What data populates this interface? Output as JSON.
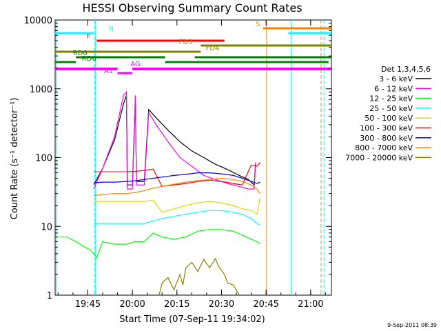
{
  "chart_data": {
    "type": "line",
    "title": "HESSI Observing Summary Count Rates",
    "xlabel": "Start Time (07-Sep-11 19:34:02)",
    "ylabel": "Count Rate (s⁻¹ detector⁻¹)",
    "yscale": "log",
    "xlim_minutes": [
      0,
      93
    ],
    "ylim": [
      1,
      10000
    ],
    "x_ticks": [
      {
        "label": "19:45",
        "min": 11
      },
      {
        "label": "20:00",
        "min": 26
      },
      {
        "label": "20:15",
        "min": 41
      },
      {
        "label": "20:30",
        "min": 56
      },
      {
        "label": "20:45",
        "min": 71
      },
      {
        "label": "21:00",
        "min": 86
      }
    ],
    "y_ticks": [
      {
        "label": "1",
        "value": 1
      },
      {
        "label": "10",
        "value": 10
      },
      {
        "label": "100",
        "value": 100
      },
      {
        "label": "1000",
        "value": 1000
      },
      {
        "label": "10000",
        "value": 10000
      }
    ],
    "legend_title": "Det 1,3,4,5,6",
    "legend_placement": "right",
    "series": [
      {
        "name": "3 - 6 keV",
        "color": "#000000",
        "points": [
          [
            13,
            40
          ],
          [
            16,
            70
          ],
          [
            20,
            180
          ],
          [
            23,
            600
          ],
          [
            24,
            800
          ],
          [
            24.3,
            40
          ],
          [
            26,
            40
          ],
          [
            27,
            700
          ],
          [
            27.4,
            45
          ],
          [
            30,
            45
          ],
          [
            31.5,
            500
          ],
          [
            34,
            380
          ],
          [
            38,
            250
          ],
          [
            42,
            170
          ],
          [
            46,
            125
          ],
          [
            50,
            100
          ],
          [
            54,
            80
          ],
          [
            58,
            67
          ],
          [
            62,
            55
          ],
          [
            65,
            48
          ],
          [
            67,
            40
          ],
          [
            67.5,
            85
          ]
        ]
      },
      {
        "name": "6 - 12 keV",
        "color": "#ff00ff",
        "points": [
          [
            13,
            35
          ],
          [
            16,
            70
          ],
          [
            20,
            200
          ],
          [
            23,
            800
          ],
          [
            24,
            900
          ],
          [
            24.3,
            35
          ],
          [
            26,
            35
          ],
          [
            27,
            800
          ],
          [
            27.4,
            40
          ],
          [
            30,
            40
          ],
          [
            31.5,
            450
          ],
          [
            34,
            300
          ],
          [
            38,
            170
          ],
          [
            42,
            100
          ],
          [
            46,
            75
          ],
          [
            50,
            55
          ],
          [
            54,
            48
          ],
          [
            58,
            42
          ],
          [
            62,
            38
          ],
          [
            65,
            35
          ],
          [
            67,
            35
          ],
          [
            67.5,
            85
          ]
        ]
      },
      {
        "name": "12 - 25 keV",
        "color": "#00ff00",
        "points": [
          [
            1,
            7
          ],
          [
            4,
            7
          ],
          [
            7,
            6
          ],
          [
            10,
            5
          ],
          [
            12,
            4.5
          ],
          [
            14,
            3.5
          ],
          [
            16,
            6
          ],
          [
            20,
            5.5
          ],
          [
            24,
            5.5
          ],
          [
            27,
            6
          ],
          [
            30,
            6
          ],
          [
            33,
            8
          ],
          [
            36,
            7
          ],
          [
            40,
            6.5
          ],
          [
            44,
            7
          ],
          [
            48,
            8.5
          ],
          [
            52,
            9
          ],
          [
            56,
            9
          ],
          [
            60,
            8.5
          ],
          [
            63,
            7.5
          ],
          [
            66,
            6.5
          ],
          [
            68,
            6
          ],
          [
            69,
            5.5
          ]
        ]
      },
      {
        "name": "25 - 50 keV",
        "color": "#00ffff",
        "points": [
          [
            13,
            11
          ],
          [
            16,
            11
          ],
          [
            20,
            11
          ],
          [
            24,
            11
          ],
          [
            27,
            11
          ],
          [
            30,
            11
          ],
          [
            33,
            12
          ],
          [
            36,
            13
          ],
          [
            40,
            14
          ],
          [
            44,
            15
          ],
          [
            48,
            16
          ],
          [
            52,
            17
          ],
          [
            56,
            17
          ],
          [
            60,
            16
          ],
          [
            63,
            15
          ],
          [
            66,
            13
          ],
          [
            68,
            11
          ],
          [
            69,
            10.5
          ]
        ]
      },
      {
        "name": "50 - 100 keV",
        "color": "#d8d800",
        "points": [
          [
            13,
            23
          ],
          [
            16,
            23
          ],
          [
            20,
            23
          ],
          [
            24,
            23
          ],
          [
            27,
            23
          ],
          [
            30,
            23
          ],
          [
            33,
            24
          ],
          [
            36,
            16
          ],
          [
            40,
            18
          ],
          [
            44,
            20
          ],
          [
            48,
            22
          ],
          [
            52,
            23
          ],
          [
            56,
            22
          ],
          [
            60,
            20
          ],
          [
            63,
            18
          ],
          [
            66,
            17
          ],
          [
            68,
            15
          ],
          [
            69,
            26
          ]
        ]
      },
      {
        "name": "100 - 300 keV",
        "color": "#ff0000",
        "points": [
          [
            13,
            62
          ],
          [
            16,
            62
          ],
          [
            20,
            62
          ],
          [
            24,
            62
          ],
          [
            27,
            63
          ],
          [
            30,
            65
          ],
          [
            33,
            68
          ],
          [
            36,
            38
          ],
          [
            40,
            40
          ],
          [
            44,
            42
          ],
          [
            48,
            45
          ],
          [
            52,
            47
          ],
          [
            56,
            45
          ],
          [
            60,
            42
          ],
          [
            63,
            40
          ],
          [
            66,
            78
          ],
          [
            68,
            75
          ],
          [
            69,
            85
          ]
        ]
      },
      {
        "name": "300 - 800 keV",
        "color": "#0000ff",
        "points": [
          [
            13,
            43
          ],
          [
            16,
            44
          ],
          [
            20,
            44
          ],
          [
            24,
            45
          ],
          [
            27,
            46
          ],
          [
            30,
            48
          ],
          [
            33,
            50
          ],
          [
            36,
            52
          ],
          [
            40,
            55
          ],
          [
            44,
            57
          ],
          [
            48,
            60
          ],
          [
            52,
            60
          ],
          [
            56,
            58
          ],
          [
            60,
            55
          ],
          [
            63,
            50
          ],
          [
            66,
            45
          ],
          [
            68,
            42
          ],
          [
            69,
            44
          ]
        ]
      },
      {
        "name": "800 - 7000 keV",
        "color": "#ff8000",
        "points": [
          [
            13,
            28
          ],
          [
            16,
            29
          ],
          [
            20,
            30
          ],
          [
            24,
            30
          ],
          [
            27,
            31
          ],
          [
            30,
            33
          ],
          [
            33,
            36
          ],
          [
            36,
            38
          ],
          [
            40,
            41
          ],
          [
            44,
            44
          ],
          [
            48,
            46
          ],
          [
            52,
            48
          ],
          [
            56,
            50
          ],
          [
            60,
            48
          ],
          [
            63,
            45
          ],
          [
            66,
            40
          ],
          [
            68,
            35
          ],
          [
            69,
            30
          ]
        ]
      },
      {
        "name": "7000 - 20000 keV",
        "color": "#808000",
        "points": [
          [
            35,
            1
          ],
          [
            36,
            1.5
          ],
          [
            38,
            1.8
          ],
          [
            40,
            1.2
          ],
          [
            42,
            2
          ],
          [
            43,
            1.4
          ],
          [
            44,
            2.5
          ],
          [
            46,
            3
          ],
          [
            48,
            2.2
          ],
          [
            50,
            3.3
          ],
          [
            52,
            2.5
          ],
          [
            54,
            3.4
          ],
          [
            55,
            2.6
          ],
          [
            57,
            2
          ],
          [
            58,
            1.5
          ],
          [
            60,
            1.4
          ],
          [
            62,
            1
          ]
        ]
      }
    ],
    "flag_bars": [
      {
        "label": "N",
        "color": "#00ffff"
      },
      {
        "label": "F",
        "color": "#ff0000"
      },
      {
        "label": "FD3",
        "color": "#808000"
      },
      {
        "label": "FD4",
        "color": "#808000"
      },
      {
        "label": "RD0",
        "color": "#008000"
      },
      {
        "label": "RD6",
        "color": "#008000"
      },
      {
        "label": "A1",
        "color": "#ff00ff"
      },
      {
        "label": "AG",
        "color": "#ff00ff"
      },
      {
        "label": "S",
        "color": "#ff8000"
      }
    ],
    "footer_date": "9-Sep-2011 08:39"
  }
}
